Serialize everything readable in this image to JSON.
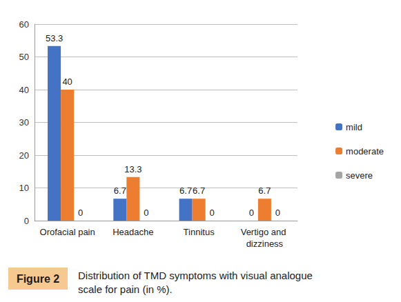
{
  "chart_data": {
    "type": "bar",
    "title": "Distribution of TMD symptoms with visual analogue scale for pain (in %).",
    "annotations": [
      "Figure 2"
    ],
    "categories": [
      "Orofacial pain",
      "Headache",
      "Tinnitus",
      "Vertigo and dizziness"
    ],
    "series": [
      {
        "name": "mild",
        "color": "#4472c4",
        "values": [
          53.3,
          6.7,
          6.7,
          0
        ]
      },
      {
        "name": "moderate",
        "color": "#ed7d31",
        "values": [
          40,
          13.3,
          6.7,
          6.7
        ]
      },
      {
        "name": "severe",
        "color": "#a5a5a5",
        "values": [
          0,
          0,
          0,
          0
        ]
      }
    ],
    "ylim": [
      0,
      60
    ],
    "yticks": [
      0,
      10,
      20,
      30,
      40,
      50,
      60
    ],
    "grid": true,
    "legend": "right",
    "data_labels": true
  }
}
